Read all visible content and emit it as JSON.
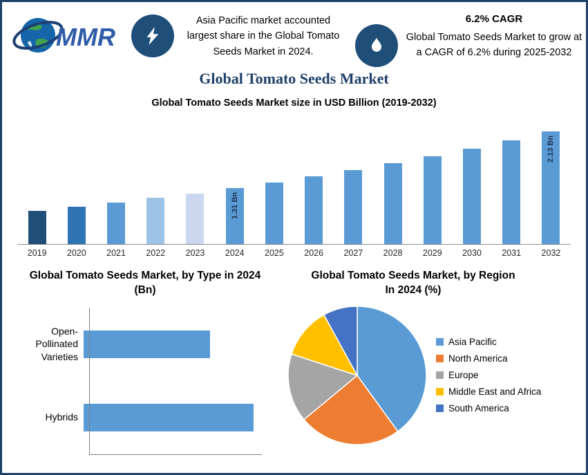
{
  "header": {
    "logo_text": "MMR",
    "callout1": {
      "icon": "lightning-icon",
      "text": "Asia Pacific market accounted largest share in the Global Tomato Seeds Market in 2024."
    },
    "callout2": {
      "icon": "flame-icon",
      "headline": "6.2% CAGR",
      "text": "Global Tomato Seeds Market to grow at a CAGR of 6.2% during 2025-2032"
    }
  },
  "main_title": "Global Tomato Seeds Market",
  "chart_data": [
    {
      "type": "bar",
      "title": "Global Tomato Seeds Market size in USD Billion (2019-2032)",
      "categories": [
        "2019",
        "2020",
        "2021",
        "2022",
        "2023",
        "2024",
        "2025",
        "2026",
        "2027",
        "2028",
        "2029",
        "2030",
        "2031",
        "2032"
      ],
      "values": [
        0.98,
        1.04,
        1.1,
        1.17,
        1.23,
        1.31,
        1.39,
        1.48,
        1.57,
        1.67,
        1.77,
        1.88,
        2.0,
        2.13
      ],
      "unit": "USD Billion",
      "bar_labels": {
        "2024": "1.31 Bn",
        "2032": "2.13 Bn"
      },
      "bar_colors": [
        "#1F4E79",
        "#2E74B5",
        "#5B9BD5",
        "#9DC3E6",
        "#CBD7EE",
        "#5B9BD5",
        "#5B9BD5",
        "#5B9BD5",
        "#5B9BD5",
        "#5B9BD5",
        "#5B9BD5",
        "#5B9BD5",
        "#5B9BD5",
        "#5B9BD5"
      ],
      "axis_range": [
        0.5,
        2.35
      ],
      "grid": false,
      "legend": false
    },
    {
      "type": "bar",
      "orientation": "horizontal",
      "title": "Global Tomato Seeds Market, by Type in 2024 (Bn)",
      "categories": [
        "Open-Pollinated Varieties",
        "Hybrids"
      ],
      "values": [
        0.56,
        0.75
      ],
      "xlim": [
        0,
        0.8
      ],
      "color": "#5B9BD5",
      "grid": false,
      "legend": false
    },
    {
      "type": "pie",
      "title": "Global Tomato Seeds Market, by Region In 2024 (%)",
      "slices": [
        {
          "label": "Asia Pacific",
          "value": 40,
          "color": "#5B9BD5"
        },
        {
          "label": "North America",
          "value": 24,
          "color": "#ED7D31"
        },
        {
          "label": "Europe",
          "value": 16,
          "color": "#A5A5A5"
        },
        {
          "label": "Middle East and Africa",
          "value": 12,
          "color": "#FFC000"
        },
        {
          "label": "South America",
          "value": 8,
          "color": "#4472C4"
        }
      ],
      "start_angle_deg": 0,
      "direction": "clockwise",
      "legend_position": "right"
    }
  ],
  "colors": {
    "accent_navy": "#1F4E79",
    "primary_blue": "#5B9BD5",
    "title_navy": "#1F4068"
  }
}
